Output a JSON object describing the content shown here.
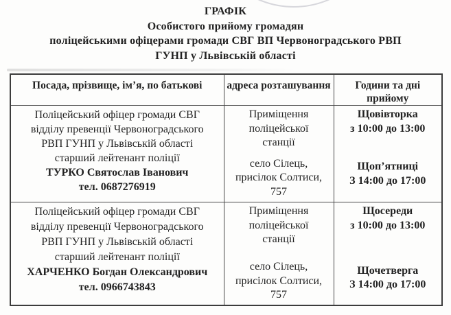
{
  "document": {
    "title_lines": [
      "ГРАФІК",
      "Особистого прийому громадян",
      "поліцейськими офіцерами громади СВГ ВП Червоноградського РВП",
      "ГУНП у Львівській області"
    ],
    "stamp_icon": "partial-round-stamp-arc"
  },
  "table": {
    "headers": [
      "Посада, прізвище, ім’я, по батькові",
      "адреса розташування",
      "Години та дні\nприйому"
    ],
    "rows": [
      {
        "position": "Поліцейський офіцер громади СВГ\nвідділу превенції Червоноградського\nРВП ГУНП у Львівській області\nстарший лейтенант поліції",
        "name": "ТУРКО Святослав Іванович",
        "phone": "тел. 0687276919",
        "address_top": "Приміщення\nполіцейської\nстанції",
        "address_bottom": "село Сілець,\nприсілок Солтиси,\n757",
        "schedule": [
          {
            "day": "Щовівторка",
            "hours": "з 10:00 до 13:00"
          },
          {
            "day": "Щоп’ятниці",
            "hours": "З 14:00 до 17:00"
          }
        ]
      },
      {
        "position": "Поліцейський офіцер громади СВГ\nвідділу превенції Червоноградського\nРВП ГУНП у Львівській області\nстарший лейтенант поліції",
        "name": "ХАРЧЕНКО Богдан Олександрович",
        "phone": "тел. 0966743843",
        "address_top": "Приміщення\nполіцейської\nстанції",
        "address_bottom": "село Сілець,\nприсілок Солтиси,\n757",
        "schedule": [
          {
            "day": "Щосереди",
            "hours": "з 10:00 до 13:00"
          },
          {
            "day": "Щочетверга",
            "hours": "З 14:00 до 17:00"
          }
        ]
      }
    ]
  },
  "colors": {
    "text": "#222222",
    "table_border": "#454545",
    "stamp": "#d7d7dc",
    "background": "#fdfdfc"
  }
}
